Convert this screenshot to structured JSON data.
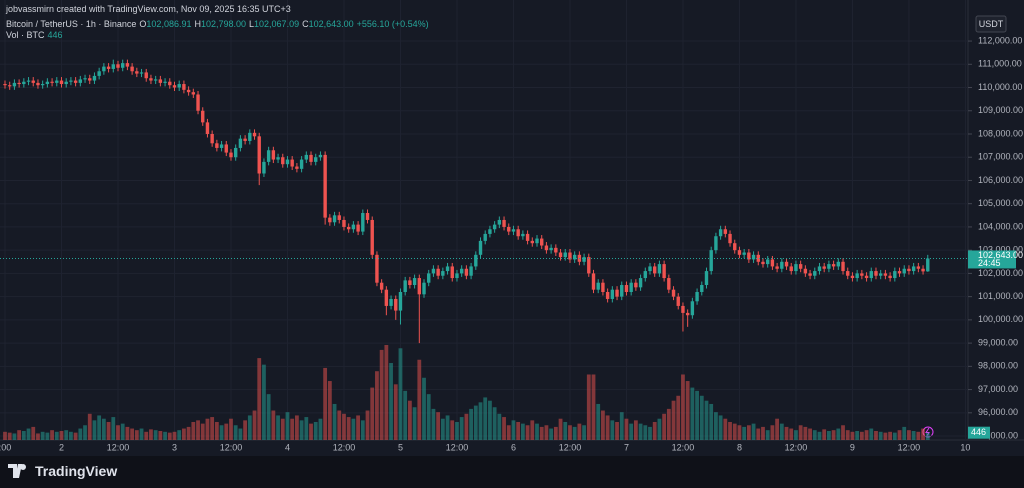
{
  "header": {
    "credit": "jobvassmirn created with TradingView.com, Nov 09, 2025 16:35 UTC+3",
    "ohlc": [
      {
        "key": "O",
        "value": "102,086.91"
      },
      {
        "key": "H",
        "value": "102,798.00"
      },
      {
        "key": "L",
        "value": "102,067.09"
      },
      {
        "key": "C",
        "value": "102,643.00"
      }
    ],
    "change": "+556.10 (+0.54%)"
  },
  "footer": {
    "logo": "TradingView"
  },
  "chart_data": {
    "type": "candlestick",
    "title": "Bitcoin / TetherUS · 1h · Binance",
    "volume_label": "Vol · BTC",
    "currency": "USDT",
    "up_color": "#26a69a",
    "down_color": "#ef5350",
    "grid": true,
    "last_price_label": "102,643.00",
    "countdown": "24:45",
    "ylim": [
      94830,
      112820
    ],
    "yticks": [
      {
        "value": 95000,
        "label": "95,000.00"
      },
      {
        "value": 96000,
        "label": "96,000.00"
      },
      {
        "value": 97000,
        "label": "97,000.00"
      },
      {
        "value": 98000,
        "label": "98,000.00"
      },
      {
        "value": 99000,
        "label": "99,000.00"
      },
      {
        "value": 100000,
        "label": "100,000.00"
      },
      {
        "value": 101000,
        "label": "101,000.00"
      },
      {
        "value": 102000,
        "label": "102,000.00"
      },
      {
        "value": 103000,
        "label": "103,000.00"
      },
      {
        "value": 104000,
        "label": "104,000.00"
      },
      {
        "value": 105000,
        "label": "105,000.00"
      },
      {
        "value": 106000,
        "label": "106,000.00"
      },
      {
        "value": 107000,
        "label": "107,000.00"
      },
      {
        "value": 108000,
        "label": "108,000.00"
      },
      {
        "value": 109000,
        "label": "109,000.00"
      },
      {
        "value": 110000,
        "label": "110,000.00"
      },
      {
        "value": 111000,
        "label": "111,000.00"
      },
      {
        "value": 112000,
        "label": "112,000.00"
      }
    ],
    "categories": [
      ":00",
      null,
      null,
      null,
      null,
      null,
      null,
      null,
      null,
      null,
      null,
      null,
      "2",
      null,
      null,
      null,
      null,
      null,
      null,
      null,
      null,
      null,
      null,
      null,
      "12:00",
      null,
      null,
      null,
      null,
      null,
      null,
      null,
      null,
      null,
      null,
      null,
      "3",
      null,
      null,
      null,
      null,
      null,
      null,
      null,
      null,
      null,
      null,
      null,
      "12:00",
      null,
      null,
      null,
      null,
      null,
      null,
      null,
      null,
      null,
      null,
      null,
      "4",
      null,
      null,
      null,
      null,
      null,
      null,
      null,
      null,
      null,
      null,
      null,
      "12:00",
      null,
      null,
      null,
      null,
      null,
      null,
      null,
      null,
      null,
      null,
      null,
      "5",
      null,
      null,
      null,
      null,
      null,
      null,
      null,
      null,
      null,
      null,
      null,
      "12:00",
      null,
      null,
      null,
      null,
      null,
      null,
      null,
      null,
      null,
      null,
      null,
      "6",
      null,
      null,
      null,
      null,
      null,
      null,
      null,
      null,
      null,
      null,
      null,
      "12:00",
      null,
      null,
      null,
      null,
      null,
      null,
      null,
      null,
      null,
      null,
      null,
      "7",
      null,
      null,
      null,
      null,
      null,
      null,
      null,
      null,
      null,
      null,
      null,
      "12:00",
      null,
      null,
      null,
      null,
      null,
      null,
      null,
      null,
      null,
      null,
      null,
      "8",
      null,
      null,
      null,
      null,
      null,
      null,
      null,
      null,
      null,
      null,
      null,
      "12:00",
      null,
      null,
      null,
      null,
      null,
      null,
      null,
      null,
      null,
      null,
      null,
      "9",
      null,
      null,
      null,
      null,
      null,
      null,
      null,
      null,
      null,
      null,
      null,
      "12:00",
      null,
      null,
      null,
      null,
      null,
      null,
      null,
      null,
      null,
      null,
      null,
      "10"
    ],
    "open": [
      110150,
      110100,
      110050,
      110200,
      110150,
      110250,
      110300,
      110200,
      110100,
      110150,
      110250,
      110200,
      110300,
      110150,
      110250,
      110300,
      110200,
      110350,
      110400,
      110300,
      110500,
      110700,
      110900,
      110800,
      111000,
      110850,
      111050,
      110900,
      110700,
      110600,
      110650,
      110400,
      110300,
      110350,
      110200,
      110250,
      110100,
      110000,
      110150,
      109900,
      109800,
      109700,
      109000,
      108500,
      108000,
      107600,
      107400,
      107550,
      107200,
      107000,
      107400,
      107800,
      107700,
      108050,
      107900,
      106300,
      106800,
      107300,
      106900,
      107000,
      106700,
      106900,
      106600,
      106500,
      106900,
      107100,
      106800,
      107000,
      107100,
      104400,
      104200,
      104500,
      104300,
      104000,
      103900,
      104100,
      103800,
      104600,
      104300,
      102800,
      101600,
      101300,
      100600,
      100900,
      100400,
      101200,
      101700,
      101500,
      101800,
      101100,
      101600,
      102000,
      102200,
      101900,
      102100,
      102300,
      101800,
      102000,
      102200,
      101900,
      102300,
      102800,
      103400,
      103700,
      103900,
      104100,
      104300,
      104000,
      103800,
      103900,
      103600,
      103700,
      103400,
      103300,
      103500,
      103200,
      103000,
      103100,
      102900,
      102700,
      102900,
      102600,
      102800,
      102500,
      102700,
      102000,
      101300,
      101600,
      101200,
      100900,
      101300,
      101000,
      101500,
      101200,
      101600,
      101400,
      101800,
      102100,
      102300,
      102000,
      102400,
      101800,
      101300,
      101000,
      100600,
      100300,
      100200,
      100800,
      101200,
      101500,
      102100,
      103000,
      103600,
      103900,
      103700,
      103300,
      103000,
      102800,
      102900,
      102600,
      102800,
      102500,
      102400,
      102600,
      102300,
      102200,
      102500,
      102300,
      102100,
      102400,
      102200,
      102000,
      101900,
      102100,
      102300,
      102200,
      102400,
      102300,
      102500,
      102100,
      101900,
      101800,
      102000,
      101900,
      101800,
      102100,
      101900,
      102000,
      101900,
      101800,
      102100,
      102000,
      102200,
      102100,
      102300,
      102200,
      102086.91,
      null,
      null,
      null,
      null,
      null,
      null,
      null,
      null
    ],
    "high": [
      110300,
      110250,
      110350,
      110350,
      110400,
      110450,
      110450,
      110350,
      110300,
      110400,
      110400,
      110450,
      110450,
      110400,
      110450,
      110450,
      110500,
      110550,
      110550,
      110650,
      110850,
      111050,
      111050,
      111200,
      111150,
      111200,
      111200,
      111050,
      110850,
      110800,
      110800,
      110550,
      110500,
      110500,
      110400,
      110400,
      110250,
      110300,
      110300,
      110050,
      109950,
      109850,
      109150,
      108650,
      108150,
      107750,
      107700,
      107700,
      107350,
      107550,
      107950,
      107950,
      108200,
      108200,
      108050,
      106950,
      107450,
      107450,
      107150,
      107150,
      107050,
      107050,
      106750,
      107050,
      107250,
      107250,
      107150,
      107250,
      107250,
      104550,
      104650,
      104650,
      104450,
      104150,
      104250,
      104250,
      104750,
      104750,
      104450,
      102950,
      101750,
      101450,
      101050,
      101050,
      101350,
      101850,
      101850,
      101950,
      101950,
      101750,
      102150,
      102350,
      102350,
      102250,
      102450,
      102450,
      102150,
      102350,
      102350,
      102450,
      102950,
      103550,
      103850,
      104050,
      104250,
      104450,
      104450,
      104150,
      104050,
      104050,
      103850,
      103850,
      103550,
      103650,
      103650,
      103350,
      103250,
      103250,
      103050,
      103050,
      103050,
      102950,
      102950,
      102850,
      102850,
      102150,
      101750,
      101750,
      101350,
      101450,
      101450,
      101650,
      101650,
      101750,
      101750,
      101950,
      102250,
      102450,
      102450,
      102550,
      102550,
      101950,
      101450,
      101150,
      100750,
      100450,
      100950,
      101350,
      101650,
      102250,
      103150,
      103750,
      104050,
      104050,
      103850,
      103450,
      103150,
      103050,
      103050,
      102950,
      102950,
      102650,
      102750,
      102750,
      102450,
      102650,
      102650,
      102450,
      102550,
      102550,
      102350,
      102150,
      102250,
      102450,
      102450,
      102550,
      102550,
      102650,
      102650,
      102250,
      102050,
      102150,
      102150,
      102050,
      102250,
      102250,
      102150,
      102150,
      102050,
      102250,
      102250,
      102350,
      102350,
      102450,
      102450,
      102350,
      102798,
      null,
      null,
      null,
      null,
      null,
      null,
      null,
      null
    ],
    "low": [
      109950,
      109900,
      109900,
      110000,
      110000,
      110100,
      110050,
      109950,
      109950,
      110000,
      110050,
      110050,
      110000,
      110000,
      110100,
      110050,
      110050,
      110200,
      110150,
      110150,
      110350,
      110550,
      110650,
      110650,
      110700,
      110700,
      110750,
      110550,
      110450,
      110450,
      110250,
      110150,
      110150,
      110050,
      110050,
      109950,
      109850,
      109850,
      109750,
      109650,
      109550,
      108850,
      108350,
      107850,
      107450,
      107250,
      107250,
      107050,
      106850,
      106850,
      107250,
      107550,
      107550,
      107750,
      105800,
      106150,
      106650,
      106750,
      106750,
      106550,
      106550,
      106450,
      106350,
      106350,
      106750,
      106650,
      106650,
      106850,
      104100,
      104050,
      104050,
      104150,
      103850,
      103750,
      103750,
      103650,
      103650,
      104150,
      102650,
      101450,
      101150,
      100200,
      100450,
      100000,
      99800,
      101050,
      101350,
      101350,
      99000,
      100950,
      101450,
      101850,
      101750,
      101750,
      101950,
      101650,
      101650,
      101850,
      101750,
      101750,
      102150,
      102650,
      103250,
      103550,
      103750,
      103950,
      103850,
      103650,
      103650,
      103450,
      103450,
      103250,
      103150,
      103150,
      103050,
      102850,
      102850,
      102750,
      102550,
      102550,
      102450,
      102450,
      102350,
      102350,
      101850,
      101150,
      101150,
      101050,
      100750,
      100750,
      100850,
      100850,
      101050,
      101050,
      101250,
      101250,
      101650,
      101950,
      101850,
      101850,
      101650,
      101150,
      100850,
      100450,
      99500,
      99700,
      100050,
      100650,
      101050,
      101350,
      101950,
      102850,
      103450,
      103550,
      103150,
      102850,
      102650,
      102650,
      102450,
      102450,
      102350,
      102250,
      102250,
      102150,
      102050,
      102050,
      102150,
      101950,
      101950,
      102050,
      101850,
      101750,
      101750,
      101950,
      102050,
      102050,
      102150,
      102150,
      101950,
      101750,
      101650,
      101650,
      101750,
      101650,
      101650,
      101750,
      101750,
      101750,
      101650,
      101650,
      101850,
      101850,
      101950,
      101950,
      102050,
      101950,
      102067.09,
      null,
      null,
      null,
      null,
      null,
      null,
      null,
      null
    ],
    "close": [
      110100,
      110050,
      110200,
      110150,
      110250,
      110300,
      110200,
      110100,
      110150,
      110250,
      110200,
      110300,
      110150,
      110250,
      110300,
      110200,
      110350,
      110400,
      110300,
      110500,
      110700,
      110900,
      110800,
      111000,
      110850,
      111050,
      110900,
      110700,
      110600,
      110650,
      110400,
      110300,
      110350,
      110200,
      110250,
      110100,
      110000,
      110150,
      109900,
      109800,
      109700,
      109000,
      108500,
      108000,
      107600,
      107400,
      107550,
      107200,
      107000,
      107400,
      107800,
      107700,
      108050,
      107900,
      106300,
      106800,
      107300,
      106900,
      107000,
      106700,
      106900,
      106600,
      106500,
      106900,
      107100,
      106800,
      107000,
      107100,
      104400,
      104200,
      104500,
      104300,
      104000,
      103900,
      104100,
      103800,
      104600,
      104300,
      102800,
      101600,
      101300,
      100600,
      100900,
      100400,
      101200,
      101700,
      101500,
      101800,
      101100,
      101600,
      102000,
      102200,
      101900,
      102100,
      102300,
      101800,
      102000,
      102200,
      101900,
      102300,
      102800,
      103400,
      103700,
      103900,
      104100,
      104300,
      104000,
      103800,
      103900,
      103600,
      103700,
      103400,
      103300,
      103500,
      103200,
      103000,
      103100,
      102900,
      102700,
      102900,
      102600,
      102800,
      102500,
      102700,
      102000,
      101300,
      101600,
      101200,
      100900,
      101300,
      101000,
      101500,
      101200,
      101600,
      101400,
      101800,
      102100,
      102300,
      102000,
      102400,
      101800,
      101300,
      101000,
      100600,
      100300,
      100200,
      100800,
      101200,
      101500,
      102100,
      103000,
      103600,
      103900,
      103700,
      103300,
      103000,
      102800,
      102900,
      102600,
      102800,
      102500,
      102400,
      102600,
      102300,
      102200,
      102500,
      102300,
      102100,
      102400,
      102200,
      102000,
      101900,
      102100,
      102300,
      102200,
      102400,
      102300,
      102500,
      102100,
      101900,
      101800,
      102000,
      101900,
      101800,
      102100,
      101900,
      102000,
      101900,
      101800,
      102100,
      102000,
      102200,
      102100,
      102300,
      102200,
      102087,
      102643,
      null,
      null,
      null,
      null,
      null,
      null,
      null,
      null
    ],
    "volume": [
      500,
      450,
      400,
      600,
      550,
      700,
      800,
      400,
      500,
      450,
      600,
      500,
      550,
      600,
      500,
      450,
      700,
      900,
      1600,
      1200,
      1500,
      1300,
      1100,
      1400,
      900,
      1000,
      800,
      700,
      600,
      700,
      500,
      650,
      600,
      550,
      500,
      450,
      500,
      600,
      700,
      800,
      1100,
      1200,
      1000,
      1300,
      1400,
      1100,
      900,
      1000,
      1300,
      900,
      700,
      1200,
      1500,
      1800,
      5000,
      4600,
      2800,
      1800,
      1500,
      1300,
      1700,
      1300,
      1500,
      1200,
      1400,
      1000,
      1100,
      1300,
      4400,
      3600,
      2200,
      1800,
      1600,
      1400,
      1300,
      1500,
      1200,
      1800,
      3200,
      4200,
      5500,
      5800,
      4700,
      3400,
      5600,
      3000,
      2400,
      2000,
      4900,
      3800,
      2800,
      1900,
      1700,
      1300,
      1500,
      1200,
      1100,
      1400,
      1600,
      1900,
      2100,
      2300,
      2600,
      2400,
      2000,
      1600,
      1400,
      900,
      1200,
      1100,
      1000,
      900,
      1200,
      1000,
      800,
      900,
      700,
      800,
      1300,
      1100,
      900,
      800,
      1000,
      900,
      4000,
      4000,
      2200,
      1800,
      1500,
      1200,
      1100,
      1700,
      1300,
      1000,
      1200,
      1000,
      900,
      800,
      1100,
      1300,
      1600,
      1900,
      2400,
      2700,
      4000,
      3600,
      3200,
      3000,
      2700,
      2400,
      2200,
      1700,
      1500,
      1300,
      1100,
      1000,
      900,
      800,
      900,
      1000,
      700,
      800,
      600,
      900,
      1300,
      1000,
      800,
      700,
      600,
      900,
      800,
      700,
      600,
      500,
      650,
      550,
      600,
      700,
      900,
      600,
      500,
      550,
      500,
      600,
      700,
      550,
      500,
      450,
      500,
      450,
      600,
      800,
      600,
      550,
      500,
      700,
      446,
      null,
      null,
      null,
      null,
      null,
      null,
      null,
      null
    ]
  }
}
